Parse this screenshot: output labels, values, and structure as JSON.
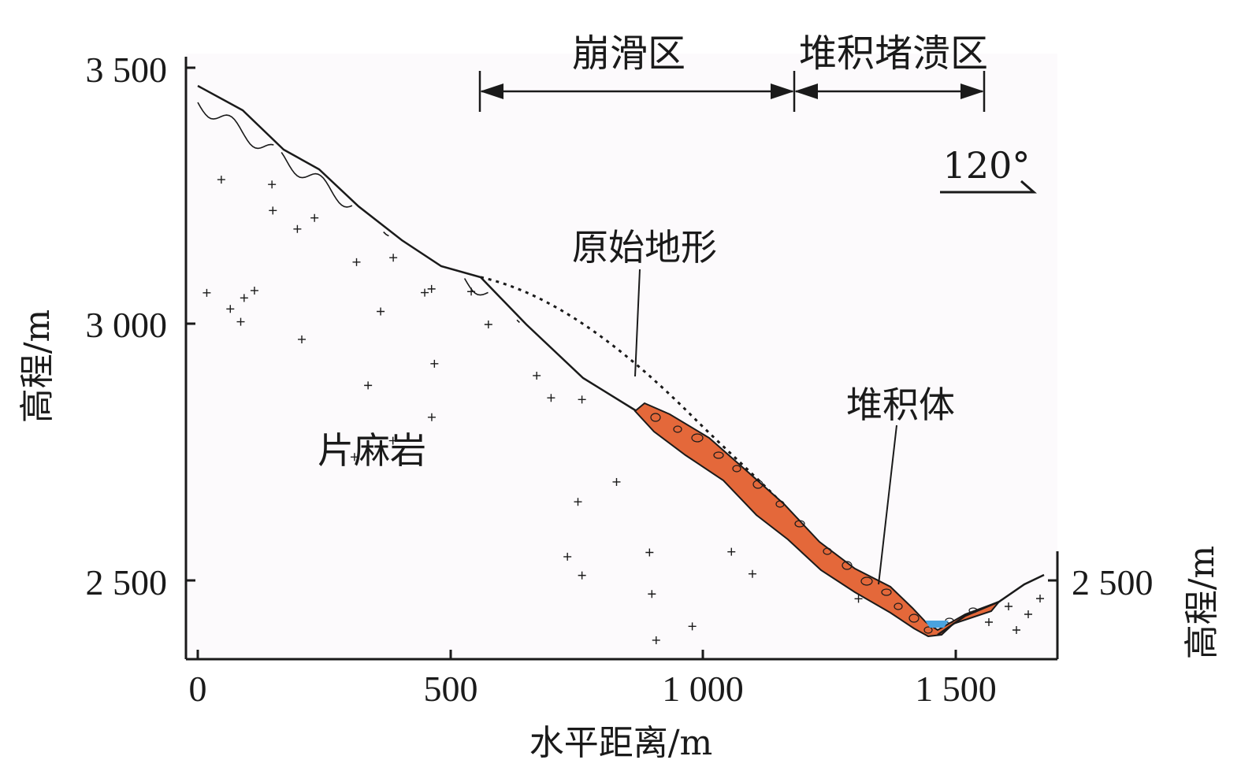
{
  "axes": {
    "x_title": "水平距离/m",
    "y_title_left": "高程/m",
    "y_title_right": "高程/m",
    "x_ticks": [
      "0",
      "500",
      "1 000",
      "1 500"
    ],
    "y_ticks_left": [
      "3 500",
      "3 000",
      "2 500"
    ],
    "y_ticks_right": [
      "2 500"
    ]
  },
  "zones": {
    "collapse": "崩滑区",
    "deposit_block": "堆积堵溃区"
  },
  "annotations": {
    "original_terrain": "原始地形",
    "deposit_body": "堆积体",
    "gneiss": "片麻岩",
    "orientation": "120°"
  },
  "colors": {
    "deposit_fill": "#e4683a",
    "water": "#4aa3df",
    "background_panel": "#fcfafc",
    "ink": "#1a1a1a"
  }
}
